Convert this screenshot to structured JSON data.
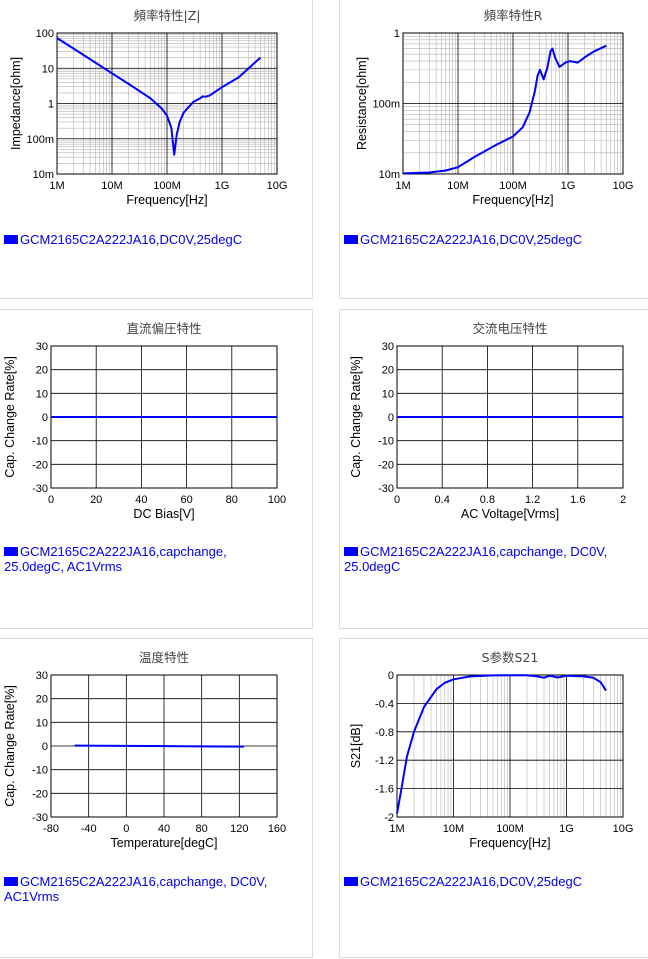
{
  "colors": {
    "series": "#0000ff",
    "grid_major": "#000000",
    "grid_minor": "#b4b4b4",
    "link": "#0000ee"
  },
  "panels": [
    {
      "legend": "GCM2165C2A222JA16,DC0V,25degC",
      "chart_data": {
        "type": "line",
        "title": "頻率特性|Z|",
        "xlabel": "Frequency[Hz]",
        "ylabel": "Impedance[ohm]",
        "xscale": "log",
        "yscale": "log",
        "xlim": [
          1000000,
          10000000000
        ],
        "ylim": [
          0.01,
          100
        ],
        "xticks": [
          1000000,
          10000000,
          100000000,
          1000000000,
          10000000000
        ],
        "xticklabels": [
          "1M",
          "10M",
          "100M",
          "1G",
          "10G"
        ],
        "yticks": [
          0.01,
          0.1,
          1,
          10,
          100
        ],
        "yticklabels": [
          "10m",
          "100m",
          "1",
          "10",
          "100"
        ],
        "grid": true,
        "legend_position": "below",
        "series": [
          {
            "x": [
              1000000,
              2000000,
              5000000,
              10000000,
              20000000,
              50000000,
              80000000,
              100000000,
              120000000,
              135000000,
              150000000,
              170000000,
              200000000,
              300000000,
              400000000,
              450000000,
              500000000,
              600000000,
              800000000,
              1000000000,
              2000000000,
              5000000000
            ],
            "y": [
              72,
              36,
              14.5,
              7.2,
              3.6,
              1.4,
              0.72,
              0.45,
              0.2,
              0.035,
              0.13,
              0.3,
              0.55,
              1.1,
              1.4,
              1.6,
              1.55,
              1.7,
              2.3,
              2.9,
              5.5,
              20
            ]
          }
        ]
      }
    },
    {
      "legend": "GCM2165C2A222JA16,DC0V,25degC",
      "chart_data": {
        "type": "line",
        "title": "頻率特性R",
        "xlabel": "Frequency[Hz]",
        "ylabel": "Resistance[ohm]",
        "xscale": "log",
        "yscale": "log",
        "xlim": [
          1000000,
          10000000000
        ],
        "ylim": [
          0.01,
          1
        ],
        "xticks": [
          1000000,
          10000000,
          100000000,
          1000000000,
          10000000000
        ],
        "xticklabels": [
          "1M",
          "10M",
          "100M",
          "1G",
          "10G"
        ],
        "yticks": [
          0.01,
          0.1,
          1
        ],
        "yticklabels": [
          "10m",
          "100m",
          "1"
        ],
        "grid": true,
        "legend_position": "below",
        "series": [
          {
            "x": [
              1000000,
              3000000,
              6000000,
              10000000,
              20000000,
              50000000,
              100000000,
              150000000,
              200000000,
              250000000,
              280000000,
              310000000,
              360000000,
              420000000,
              480000000,
              520000000,
              580000000,
              700000000,
              900000000,
              1100000000,
              1500000000,
              2000000000,
              3000000000,
              5000000000
            ],
            "y": [
              0.0102,
              0.0105,
              0.0112,
              0.0125,
              0.0175,
              0.026,
              0.034,
              0.046,
              0.075,
              0.15,
              0.25,
              0.3,
              0.22,
              0.32,
              0.55,
              0.6,
              0.45,
              0.33,
              0.38,
              0.4,
              0.38,
              0.45,
              0.55,
              0.66
            ]
          }
        ]
      }
    },
    {
      "legend": "GCM2165C2A222JA16,capchange, 25.0degC, AC1Vrms",
      "chart_data": {
        "type": "line",
        "title": "直流偏圧特性",
        "xlabel": "DC Bias[V]",
        "ylabel": "Cap. Change Rate[%]",
        "xlim": [
          0,
          100
        ],
        "ylim": [
          -30,
          30
        ],
        "xticks": [
          0,
          20,
          40,
          60,
          80,
          100
        ],
        "xticklabels": [
          "0",
          "20",
          "40",
          "60",
          "80",
          "100"
        ],
        "yticks": [
          -30,
          -20,
          -10,
          0,
          10,
          20,
          30
        ],
        "yticklabels": [
          "-30",
          "-20",
          "-10",
          "0",
          "10",
          "20",
          "30"
        ],
        "grid": true,
        "legend_position": "below",
        "series": [
          {
            "x": [
              0,
              100
            ],
            "y": [
              0,
              0
            ]
          }
        ]
      }
    },
    {
      "legend": "GCM2165C2A222JA16,capchange, DC0V, 25.0degC",
      "chart_data": {
        "type": "line",
        "title": "交流电压特性",
        "xlabel": "AC Voltage[Vrms]",
        "ylabel": "Cap. Change Rate[%]",
        "xlim": [
          0,
          2
        ],
        "ylim": [
          -30,
          30
        ],
        "xticks": [
          0,
          0.4,
          0.8,
          1.2,
          1.6,
          2
        ],
        "xticklabels": [
          "0",
          "0.4",
          "0.8",
          "1.2",
          "1.6",
          "2"
        ],
        "yticks": [
          -30,
          -20,
          -10,
          0,
          10,
          20,
          30
        ],
        "yticklabels": [
          "-30",
          "-20",
          "-10",
          "0",
          "10",
          "20",
          "30"
        ],
        "grid": true,
        "legend_position": "below",
        "series": [
          {
            "x": [
              0,
              2
            ],
            "y": [
              0,
              0
            ]
          }
        ]
      }
    },
    {
      "legend": "GCM2165C2A222JA16,capchange, DC0V, AC1Vrms",
      "chart_data": {
        "type": "line",
        "title": "温度特性",
        "xlabel": "Temperature[degC]",
        "ylabel": "Cap. Change Rate[%]",
        "xlim": [
          -80,
          160
        ],
        "ylim": [
          -30,
          30
        ],
        "xticks": [
          -80,
          -40,
          0,
          40,
          80,
          120,
          160
        ],
        "xticklabels": [
          "-80",
          "-40",
          "0",
          "40",
          "80",
          "120",
          "160"
        ],
        "yticks": [
          -30,
          -20,
          -10,
          0,
          10,
          20,
          30
        ],
        "yticklabels": [
          "-30",
          "-20",
          "-10",
          "0",
          "10",
          "20",
          "30"
        ],
        "grid": true,
        "legend_position": "below",
        "series": [
          {
            "x": [
              -55,
              0,
              25,
              60,
              125
            ],
            "y": [
              0.15,
              0.05,
              0,
              -0.1,
              -0.25
            ]
          }
        ]
      }
    },
    {
      "legend": "GCM2165C2A222JA16,DC0V,25degC",
      "chart_data": {
        "type": "line",
        "title": "S参数S21",
        "xlabel": "Frequency[Hz]",
        "ylabel": "S21[dB]",
        "xscale": "log",
        "xlim": [
          1000000,
          10000000000
        ],
        "ylim": [
          -2,
          0
        ],
        "xticks": [
          1000000,
          10000000,
          100000000,
          1000000000,
          10000000000
        ],
        "xticklabels": [
          "1M",
          "10M",
          "100M",
          "1G",
          "10G"
        ],
        "yticks": [
          -2,
          -1.6,
          -1.2,
          -0.8,
          -0.4,
          0
        ],
        "yticklabels": [
          "-2",
          "-1.6",
          "-1.2",
          "-0.8",
          "-0.4",
          "0"
        ],
        "grid": true,
        "legend_position": "below",
        "series": [
          {
            "x": [
              1000000,
              1200000,
              1500000,
              2000000,
              3000000,
              5000000,
              7000000,
              10000000,
              20000000,
              50000000,
              100000000,
              200000000,
              300000000,
              400000000,
              500000000,
              700000000,
              1000000000,
              2000000000,
              3000000000,
              4000000000,
              5000000000
            ],
            "y": [
              -1.95,
              -1.6,
              -1.15,
              -0.8,
              -0.45,
              -0.2,
              -0.11,
              -0.06,
              -0.02,
              -0.005,
              -0.003,
              -0.004,
              -0.02,
              -0.04,
              -0.01,
              -0.035,
              -0.01,
              -0.02,
              -0.04,
              -0.1,
              -0.22
            ]
          }
        ]
      }
    }
  ]
}
